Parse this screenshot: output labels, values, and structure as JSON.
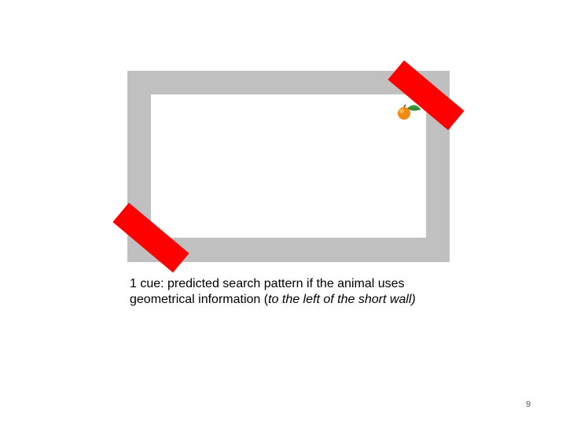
{
  "colors": {
    "wall": "#c0c0c0",
    "floor": "#ffffff",
    "cue_marker": "#ff0000",
    "fruit": "#f28a10",
    "leaf": "#3e9a3a"
  },
  "icons": {
    "reward": "orange-icon"
  },
  "caption": {
    "line1": "1 cue: predicted search pattern if the animal uses",
    "line2_prefix": "geometrical information (",
    "line2_italic": "to the left of the short wall)"
  },
  "slide_number": "9"
}
